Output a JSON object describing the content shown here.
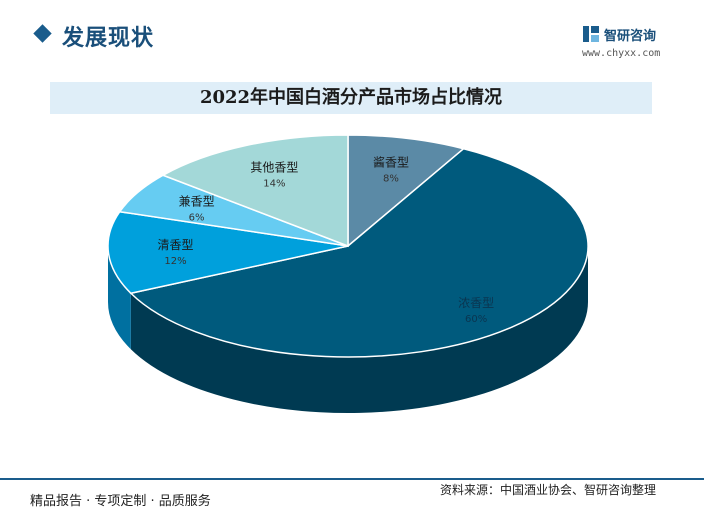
{
  "header": {
    "section_title": "发展现状",
    "logo_name": "智研咨询",
    "logo_url": "www.chyxx.com"
  },
  "chart_data": {
    "type": "pie",
    "title": "2022年中国白酒分产品市场占比情况",
    "categories": [
      "酱香型",
      "浓香型",
      "清香型",
      "兼香型",
      "其他香型"
    ],
    "values": [
      8,
      60,
      12,
      6,
      14
    ],
    "value_labels": [
      "8%",
      "60%",
      "12%",
      "6%",
      "14%"
    ],
    "colors": [
      "#5b8aa6",
      "#005a7d",
      "#00a0dc",
      "#66ccf2",
      "#a3d8d8"
    ],
    "side_colors": [
      "#3a6378",
      "#003a52",
      "#0070a0",
      "#3f9fc8",
      "#7aa8a8"
    ],
    "start_angle_deg": 0,
    "legend": "none",
    "style": "3d"
  },
  "footer": {
    "left": "精品报告 · 专项定制 · 品质服务",
    "right": "资料来源：中国酒业协会、智研咨询整理"
  }
}
